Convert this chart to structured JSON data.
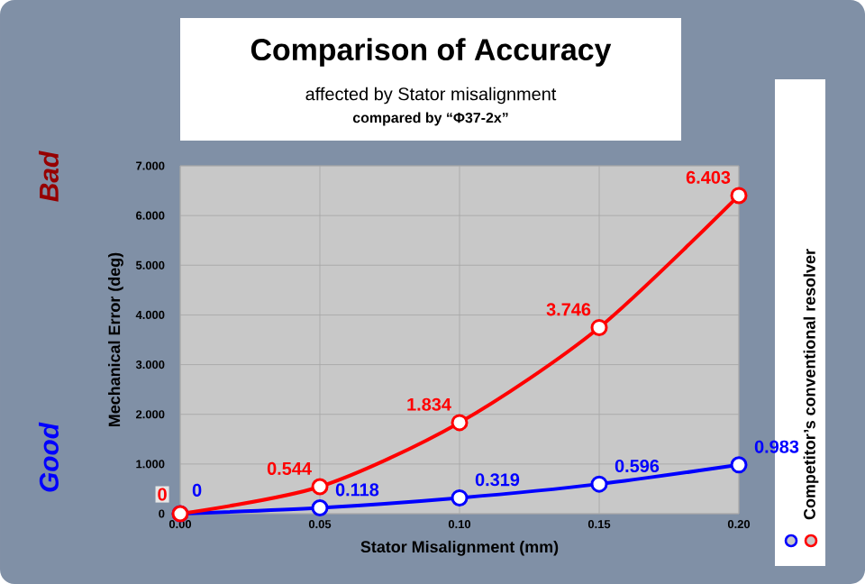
{
  "chart_data": {
    "type": "line",
    "title": "Comparison of Accuracy",
    "subtitle": "affected by Stator misalignment",
    "xlabel": "Stator Misalignment (mm)",
    "ylabel": "Mechanical Error (deg)",
    "annotations": [
      "compared by “Φ37-2x”",
      "Bad",
      "Good"
    ],
    "x": [
      0,
      0.05,
      0.1,
      0.15,
      0.2
    ],
    "series": [
      {
        "color": "#0000ff",
        "values": [
          0,
          0.118,
          0.319,
          0.596,
          0.983
        ],
        "value_labels": [
          "0",
          "0.118",
          "0.319",
          "0.596",
          "0.983"
        ]
      },
      {
        "name": "Competitor’s conventional resolver",
        "color": "#ff0000",
        "values": [
          0,
          0.544,
          1.834,
          3.746,
          6.403
        ],
        "value_labels": [
          "0",
          "0.544",
          "1.834",
          "3.746",
          "6.403"
        ]
      }
    ],
    "xlim": [
      0,
      0.2
    ],
    "ylim": [
      0,
      7
    ],
    "xticks": [
      {
        "value": 0,
        "label": "0.00"
      },
      {
        "value": 0.05,
        "label": "0.05"
      },
      {
        "value": 0.1,
        "label": "0.10"
      },
      {
        "value": 0.15,
        "label": "0.15"
      },
      {
        "value": 0.2,
        "label": "0.20"
      }
    ],
    "yticks": [
      0,
      {
        "value": 1,
        "label": "1.000"
      },
      {
        "value": 2,
        "label": "2.000"
      },
      {
        "value": 3,
        "label": "3.000"
      },
      {
        "value": 4,
        "label": "4.000"
      },
      {
        "value": 5,
        "label": "5.000"
      },
      {
        "value": 6,
        "label": "6.000"
      },
      {
        "value": 7,
        "label": "7.000"
      }
    ],
    "grid": true,
    "legend": "right",
    "marker": "circle",
    "line_style": "solid"
  }
}
